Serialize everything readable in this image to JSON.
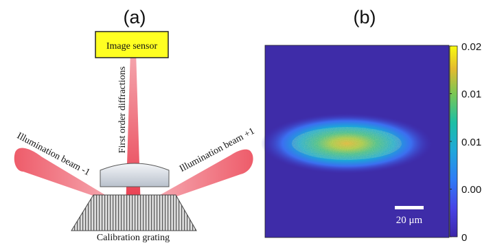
{
  "panel_a": {
    "label": "(a)",
    "sensor_label": "Image sensor",
    "diffraction_label": "First order diffractions",
    "beam_minus_label": "Illumination beam -1",
    "beam_plus_label": "Illumination beam +1",
    "grating_label": "Calibration grating"
  },
  "panel_b": {
    "label": "(b)",
    "scale_bar_label": "20 μm",
    "colorbar": {
      "min": 0,
      "max": 0.02,
      "tick_labels": [
        "0.02",
        "0.015",
        "0.01",
        "0.005",
        "0"
      ]
    }
  },
  "colors": {
    "sensor_fill": "#ffff22",
    "beam": "#e8384a",
    "colormap_low": "#3d26a8",
    "colormap_high": "#f9fb0e"
  }
}
